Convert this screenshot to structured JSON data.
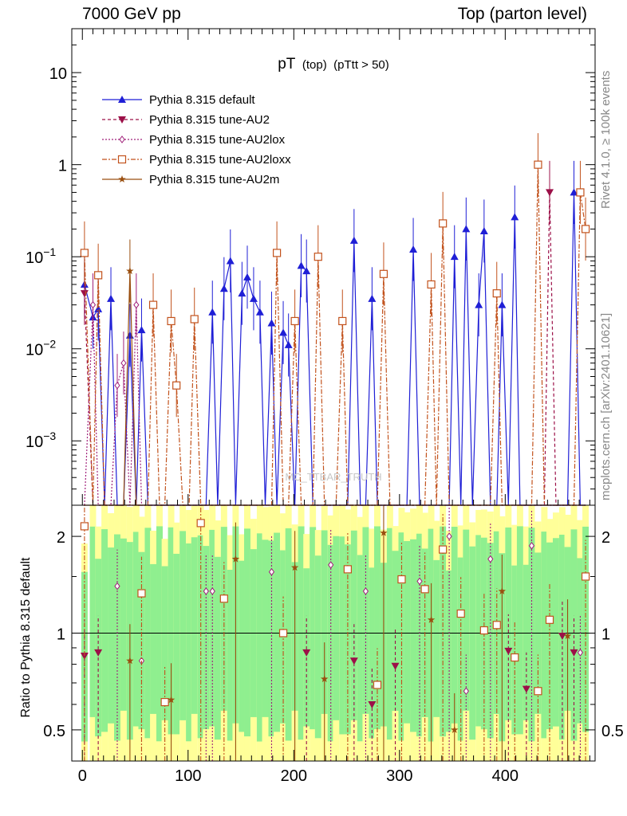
{
  "header": {
    "left": "7000 GeV pp",
    "right": "Top (parton level)"
  },
  "side_labels": {
    "rivet": "Rivet 4.1.0, ≥ 100k events",
    "mcplots": "mcplots.cern.ch [arXiv:2401.10621]"
  },
  "watermark": "MC_TTBAR_TRUTH",
  "colors": {
    "default": "#1f1fd6",
    "au2": "#9c1048",
    "au2lox": "#a0207a",
    "au2loxx": "#c2521c",
    "au2m": "#9a4f10",
    "band_green": "#8fef8f",
    "band_yellow": "#ffff99"
  },
  "chart_data": [
    {
      "type": "line",
      "panel": "main",
      "title": "pT",
      "title_sub": "(top)",
      "title_cut": "(pTtt > 50)",
      "xlabel": "",
      "ylabel": "",
      "yscale": "log",
      "xlim": [
        -10,
        485
      ],
      "ylim": [
        0.0002,
        30
      ],
      "y_ticks": [
        {
          "value": 0.001,
          "label": "10",
          "exp": "−3"
        },
        {
          "value": 0.01,
          "label": "10",
          "exp": "−2"
        },
        {
          "value": 0.1,
          "label": "10",
          "exp": "−1"
        },
        {
          "value": 1,
          "label": "1",
          "exp": ""
        },
        {
          "value": 10,
          "label": "10",
          "exp": ""
        }
      ],
      "legend": [
        {
          "key": "default",
          "label": "Pythia 8.315 default",
          "marker": "triangle-up",
          "dash": "solid"
        },
        {
          "key": "au2",
          "label": "Pythia 8.315 tune-AU2",
          "marker": "triangle-down",
          "dash": "dashed"
        },
        {
          "key": "au2lox",
          "label": "Pythia 8.315 tune-AU2lox",
          "marker": "diamond-open",
          "dash": "dotted"
        },
        {
          "key": "au2loxx",
          "label": "Pythia 8.315 tune-AU2loxx",
          "marker": "square-open",
          "dash": "dashdot"
        },
        {
          "key": "au2m",
          "label": "Pythia 8.315 tune-AU2m",
          "marker": "star",
          "dash": "solid"
        }
      ],
      "x": [
        2,
        10,
        15,
        21,
        27,
        33,
        39,
        45,
        51,
        56,
        62,
        67,
        73,
        78,
        84,
        89,
        95,
        101,
        106,
        112,
        117,
        123,
        128,
        134,
        140,
        145,
        151,
        156,
        162,
        168,
        173,
        179,
        184,
        190,
        195,
        201,
        207,
        212,
        218,
        223,
        229,
        235,
        240,
        246,
        251,
        257,
        263,
        268,
        274,
        279,
        285,
        291,
        296,
        302,
        307,
        313,
        319,
        324,
        330,
        335,
        341,
        347,
        352,
        358,
        363,
        369,
        375,
        380,
        386,
        392,
        397,
        403,
        409,
        414,
        420,
        425,
        431,
        437,
        442,
        448,
        454,
        459,
        465,
        471,
        476
      ],
      "series": [
        {
          "name": "Pythia 8.315 default",
          "key": "default",
          "values": [
            0.05,
            0.022,
            0.027,
            0.0002,
            0.035,
            0.0002,
            0.0002,
            0.014,
            0.0002,
            0.016,
            0.0002,
            0.0002,
            0.0002,
            0.0002,
            0.0002,
            0.0002,
            0.0002,
            0.0002,
            0.0002,
            0.0002,
            0.0002,
            0.025,
            0.0002,
            0.045,
            0.09,
            0.0002,
            0.04,
            0.06,
            0.035,
            0.025,
            0.0002,
            0.019,
            0.0002,
            0.015,
            0.011,
            0.0002,
            0.08,
            0.07,
            0.0002,
            0.0002,
            0.0002,
            0.0002,
            0.0002,
            0.0002,
            0.0002,
            0.15,
            0.0002,
            0.0002,
            0.035,
            0.0002,
            0.0002,
            0.0002,
            0.0002,
            0.0002,
            0.0002,
            0.12,
            0.0002,
            0.0002,
            0.0002,
            0.0002,
            0.0002,
            0.0002,
            0.1,
            0.0002,
            0.2,
            0.0002,
            0.03,
            0.19,
            0.0002,
            0.0002,
            0.03,
            0.0002,
            0.27,
            0.0002,
            0.0002,
            0.0002,
            0.0002,
            0.0002,
            0.0002,
            0.0002,
            0.0002,
            0.0002,
            0.5,
            0.0002,
            0.0002
          ]
        },
        {
          "name": "Pythia 8.315 tune-AU2",
          "key": "au2",
          "values": [
            0.04,
            0.0002,
            0.0002,
            0.0002,
            0.0002,
            0.0002,
            0.0002,
            0.0002,
            0.0002,
            0.0002,
            0.0002,
            0.0002,
            0.0002,
            0.0002,
            0.0002,
            0.0002,
            0.0002,
            0.0002,
            0.0002,
            0.0002,
            0.0002,
            0.0002,
            0.0002,
            0.0002,
            0.0002,
            0.0002,
            0.0002,
            0.0002,
            0.0002,
            0.0002,
            0.0002,
            0.0002,
            0.0002,
            0.0002,
            0.0002,
            0.0002,
            0.0002,
            0.0002,
            0.0002,
            0.0002,
            0.0002,
            0.0002,
            0.0002,
            0.0002,
            0.0002,
            0.0002,
            0.0002,
            0.0002,
            0.0002,
            0.0002,
            0.0002,
            0.0002,
            0.0002,
            0.0002,
            0.0002,
            0.0002,
            0.0002,
            0.0002,
            0.0002,
            0.0002,
            0.0002,
            0.0002,
            0.0002,
            0.0002,
            0.0002,
            0.0002,
            0.0002,
            0.0002,
            0.0002,
            0.0002,
            0.0002,
            0.0002,
            0.0002,
            0.0002,
            0.0002,
            0.0002,
            0.0002,
            0.0002,
            0.5,
            0.0002,
            0.0002,
            0.0002,
            0.0002,
            0.0002,
            0.0002
          ]
        },
        {
          "name": "Pythia 8.315 tune-AU2lox",
          "key": "au2lox",
          "values": [
            0.0002,
            0.03,
            0.0002,
            0.0002,
            0.0002,
            0.004,
            0.007,
            0.0002,
            0.03,
            0.0002,
            0.0002,
            0.0002,
            0.0002,
            0.0002,
            0.0002,
            0.0002,
            0.0002,
            0.0002,
            0.0002,
            0.0002,
            0.0002,
            0.0002,
            0.0002,
            0.0002,
            0.0002,
            0.0002,
            0.0002,
            0.0002,
            0.0002,
            0.0002,
            0.0002,
            0.0002,
            0.0002,
            0.0002,
            0.0002,
            0.0002,
            0.0002,
            0.0002,
            0.0002,
            0.0002,
            0.0002,
            0.0002,
            0.0002,
            0.0002,
            0.0002,
            0.0002,
            0.0002,
            0.0002,
            0.0002,
            0.0002,
            0.0002,
            0.0002,
            0.0002,
            0.0002,
            0.0002,
            0.0002,
            0.0002,
            0.0002,
            0.0002,
            0.0002,
            0.0002,
            0.0002,
            0.0002,
            0.0002,
            0.0002,
            0.0002,
            0.0002,
            0.0002,
            0.0002,
            0.0002,
            0.0002,
            0.0002,
            0.0002,
            0.0002,
            0.0002,
            0.0002,
            0.0002,
            0.0002,
            0.0002,
            0.0002,
            0.0002,
            0.0002,
            0.0002,
            0.0002,
            0.0002
          ]
        },
        {
          "name": "Pythia 8.315 tune-AU2loxx",
          "key": "au2loxx",
          "values": [
            0.11,
            0.0002,
            0.063,
            0.0002,
            0.0002,
            0.0002,
            0.0002,
            0.0002,
            0.0002,
            0.0002,
            0.0002,
            0.03,
            0.0002,
            0.0002,
            0.02,
            0.004,
            0.0002,
            0.0002,
            0.021,
            0.0002,
            0.0002,
            0.0002,
            0.0002,
            0.0002,
            0.0002,
            0.0002,
            0.0002,
            0.0002,
            0.0002,
            0.0002,
            0.0002,
            0.0002,
            0.11,
            0.0002,
            0.0002,
            0.02,
            0.0002,
            0.0002,
            0.0002,
            0.1,
            0.0002,
            0.0002,
            0.0002,
            0.02,
            0.0002,
            0.0002,
            0.0002,
            0.0002,
            0.0002,
            0.0002,
            0.065,
            0.0002,
            0.0002,
            0.0002,
            0.0002,
            0.0002,
            0.0002,
            0.0002,
            0.05,
            0.0002,
            0.23,
            0.0002,
            0.0002,
            0.0002,
            0.0002,
            0.0002,
            0.0002,
            0.0002,
            0.0002,
            0.04,
            0.0002,
            0.0002,
            0.0002,
            0.0002,
            0.0002,
            0.0002,
            1.0,
            0.0002,
            0.0002,
            0.0002,
            0.0002,
            0.0002,
            0.0002,
            0.5,
            0.2
          ]
        },
        {
          "name": "Pythia 8.315 tune-AU2m",
          "key": "au2m",
          "values": [
            0.0002,
            0.0002,
            0.0002,
            0.0002,
            0.0002,
            0.0002,
            0.0002,
            0.07,
            0.0002,
            0.0002,
            0.0002,
            0.0002,
            0.0002,
            0.0002,
            0.0002,
            0.0002,
            0.0002,
            0.0002,
            0.0002,
            0.0002,
            0.0002,
            0.0002,
            0.0002,
            0.0002,
            0.0002,
            0.0002,
            0.0002,
            0.0002,
            0.0002,
            0.0002,
            0.0002,
            0.0002,
            0.0002,
            0.0002,
            0.0002,
            0.0002,
            0.0002,
            0.0002,
            0.0002,
            0.0002,
            0.0002,
            0.0002,
            0.0002,
            0.0002,
            0.0002,
            0.0002,
            0.0002,
            0.0002,
            0.0002,
            0.0002,
            0.0002,
            0.0002,
            0.0002,
            0.0002,
            0.0002,
            0.0002,
            0.0002,
            0.0002,
            0.0002,
            0.0002,
            0.0002,
            0.0002,
            0.0002,
            0.0002,
            0.0002,
            0.0002,
            0.0002,
            0.0002,
            0.0002,
            0.0002,
            0.0002,
            0.0002,
            0.0002,
            0.0002,
            0.0002,
            0.0002,
            0.0002,
            0.0002,
            0.0002,
            0.0002,
            0.0002,
            0.0002,
            0.0002,
            0.0002,
            0.0002
          ]
        }
      ]
    },
    {
      "type": "line",
      "panel": "ratio",
      "ylabel": "Ratio to Pythia 8.315 default",
      "xlabel": "",
      "yscale": "log",
      "xlim": [
        -10,
        485
      ],
      "ylim": [
        0.4,
        2.5
      ],
      "y_ticks": [
        0.5,
        1,
        2
      ],
      "x_ticks": [
        0,
        100,
        200,
        300,
        400
      ],
      "reference": 1,
      "series": [
        {
          "name": "Pythia 8.315 tune-AU2",
          "key": "au2",
          "points": [
            [
              2,
              0.85
            ],
            [
              15,
              0.87
            ],
            [
              212,
              0.87
            ],
            [
              257,
              0.82
            ],
            [
              274,
              0.6
            ],
            [
              296,
              0.79
            ],
            [
              403,
              0.88
            ],
            [
              420,
              0.67
            ],
            [
              454,
              0.98
            ],
            [
              465,
              0.87
            ]
          ]
        },
        {
          "name": "Pythia 8.315 tune-AU2lox",
          "key": "au2lox",
          "values_note": "",
          "points": [
            [
              33,
              1.4
            ],
            [
              56,
              0.82
            ],
            [
              117,
              1.35
            ],
            [
              123,
              1.35
            ],
            [
              179,
              1.55
            ],
            [
              235,
              1.63
            ],
            [
              268,
              1.35
            ],
            [
              319,
              1.45
            ],
            [
              347,
              2.0
            ],
            [
              363,
              0.66
            ],
            [
              386,
              1.7
            ],
            [
              425,
              1.87
            ],
            [
              471,
              0.87
            ]
          ]
        },
        {
          "name": "Pythia 8.315 tune-AU2loxx",
          "key": "au2loxx",
          "points": [
            [
              2,
              2.15
            ],
            [
              56,
              1.33
            ],
            [
              78,
              0.61
            ],
            [
              112,
              2.2
            ],
            [
              134,
              1.28
            ],
            [
              190,
              1.0
            ],
            [
              251,
              1.58
            ],
            [
              279,
              0.69
            ],
            [
              302,
              1.47
            ],
            [
              324,
              1.37
            ],
            [
              341,
              1.82
            ],
            [
              358,
              1.15
            ],
            [
              380,
              1.02
            ],
            [
              392,
              1.06
            ],
            [
              409,
              0.84
            ],
            [
              431,
              0.66
            ],
            [
              442,
              1.1
            ],
            [
              476,
              1.5
            ]
          ]
        },
        {
          "name": "Pythia 8.315 tune-AU2m",
          "key": "au2m",
          "points": [
            [
              45,
              0.82
            ],
            [
              84,
              0.62
            ],
            [
              145,
              1.7
            ],
            [
              201,
              1.6
            ],
            [
              229,
              0.72
            ],
            [
              285,
              2.05
            ],
            [
              330,
              1.1
            ],
            [
              352,
              0.5
            ],
            [
              397,
              1.35
            ],
            [
              459,
              0.98
            ]
          ]
        }
      ]
    }
  ]
}
